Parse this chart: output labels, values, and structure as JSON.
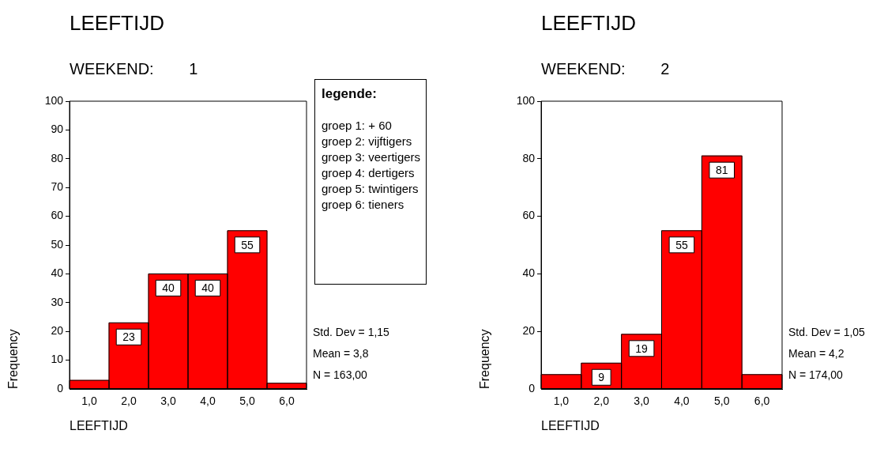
{
  "chart_data": [
    {
      "type": "histogram",
      "title": "LEEFTIJD",
      "subtitle": "WEEKEND:        1",
      "xlabel": "LEEFTIJD",
      "ylabel": "Frequency",
      "bins": [
        0.5,
        1.5,
        2.5,
        3.5,
        4.5,
        5.5,
        6.5
      ],
      "values": [
        3,
        23,
        40,
        40,
        55,
        2
      ],
      "value_labels": [
        null,
        "23",
        "40",
        "40",
        "55",
        null
      ],
      "color": "#ff0000",
      "xlim": [
        0.5,
        6.5
      ],
      "xticks": [
        {
          "value": 1,
          "label": "1,0"
        },
        {
          "value": 2,
          "label": "2,0"
        },
        {
          "value": 3,
          "label": "3,0"
        },
        {
          "value": 4,
          "label": "4,0"
        },
        {
          "value": 5,
          "label": "5,0"
        },
        {
          "value": 6,
          "label": "6,0"
        }
      ],
      "ylim": [
        0,
        100
      ],
      "yticks": [
        0,
        10,
        20,
        30,
        40,
        50,
        60,
        70,
        80,
        90,
        100
      ],
      "annotations": [
        "Std. Dev = 1,15",
        "Mean = 3,8",
        "N = 163,00"
      ]
    },
    {
      "type": "other",
      "title": "legende:",
      "annotations": [
        "groep 1: + 60",
        "groep 2: vijftigers",
        "groep 3: veertigers",
        "groep 4: dertigers",
        "groep 5: twintigers",
        "groep 6: tieners"
      ]
    },
    {
      "type": "histogram",
      "title": "LEEFTIJD",
      "subtitle": "WEEKEND:        2",
      "xlabel": "LEEFTIJD",
      "ylabel": "Frequency",
      "bins": [
        0.5,
        1.5,
        2.5,
        3.5,
        4.5,
        5.5,
        6.5
      ],
      "values": [
        5,
        9,
        19,
        55,
        81,
        5
      ],
      "value_labels": [
        null,
        "9",
        "19",
        "55",
        "81",
        null
      ],
      "color": "#ff0000",
      "xlim": [
        0.5,
        6.5
      ],
      "xticks": [
        {
          "value": 1,
          "label": "1,0"
        },
        {
          "value": 2,
          "label": "2,0"
        },
        {
          "value": 3,
          "label": "3,0"
        },
        {
          "value": 4,
          "label": "4,0"
        },
        {
          "value": 5,
          "label": "5,0"
        },
        {
          "value": 6,
          "label": "6,0"
        }
      ],
      "ylim": [
        0,
        100
      ],
      "yticks": [
        0,
        20,
        40,
        60,
        80,
        100
      ],
      "annotations": [
        "Std. Dev = 1,05",
        "Mean = 4,2",
        "N = 174,00"
      ]
    }
  ]
}
